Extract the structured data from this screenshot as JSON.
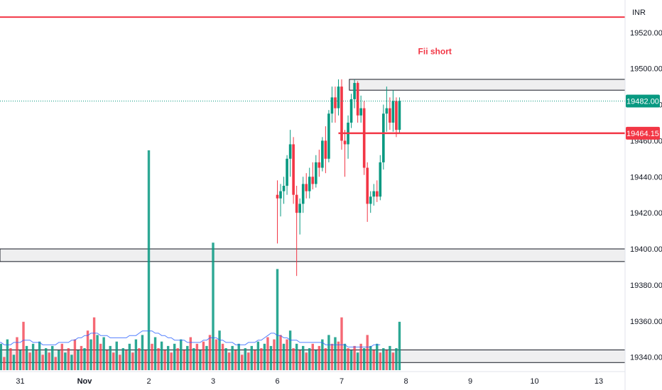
{
  "chart_data": {
    "type": "candlestick",
    "currency_label": "INR",
    "y_ticks": [
      19340,
      19360,
      19380,
      19400,
      19420,
      19440,
      19460,
      19480,
      19500,
      19520
    ],
    "y_tick_labels": [
      "19340.00",
      "19360.00",
      "19380.00",
      "19400.00",
      "19420.00",
      "19440.00",
      "19460.00",
      "19480.00",
      "19500.00",
      "19520.00"
    ],
    "ylim": [
      19332,
      19538
    ],
    "x_ticks": [
      {
        "label": "31",
        "x": -1
      },
      {
        "label": "Nov",
        "x": 0,
        "bold": true
      },
      {
        "label": "2",
        "x": 1
      },
      {
        "label": "3",
        "x": 2
      },
      {
        "label": "6",
        "x": 3
      },
      {
        "label": "7",
        "x": 4
      },
      {
        "label": "8",
        "x": 5
      },
      {
        "label": "9",
        "x": 6
      },
      {
        "label": "10",
        "x": 7
      },
      {
        "label": "13",
        "x": 8
      }
    ],
    "last_price": {
      "value": 19482.0,
      "label": "19482.00",
      "color": "#089981"
    },
    "level_line": {
      "value": 19464.15,
      "label": "19464.15",
      "color": "#f23645"
    },
    "top_line": {
      "value": 19528.5,
      "color": "#f23645"
    },
    "zones": [
      {
        "from": 19488,
        "to": 19494,
        "x_start": 4.12
      },
      {
        "from": 19393,
        "to": 19400,
        "x_start": -1.35
      },
      {
        "from": 19337,
        "to": 19344,
        "x_start": -1.35
      }
    ],
    "annotations": [
      {
        "text": "Fii short",
        "x": 5.45,
        "y": 19508,
        "color": "#f23645"
      }
    ],
    "candles": [
      {
        "x": 3.0,
        "o": 19430,
        "h": 19438,
        "l": 19403,
        "c": 19428
      },
      {
        "x": 3.05,
        "o": 19428,
        "h": 19436,
        "l": 19418,
        "c": 19432
      },
      {
        "x": 3.1,
        "o": 19432,
        "h": 19440,
        "l": 19425,
        "c": 19435
      },
      {
        "x": 3.15,
        "o": 19435,
        "h": 19452,
        "l": 19430,
        "c": 19450
      },
      {
        "x": 3.2,
        "o": 19450,
        "h": 19466,
        "l": 19440,
        "c": 19458
      },
      {
        "x": 3.25,
        "o": 19458,
        "h": 19462,
        "l": 19425,
        "c": 19430
      },
      {
        "x": 3.3,
        "o": 19430,
        "h": 19435,
        "l": 19385,
        "c": 19420
      },
      {
        "x": 3.35,
        "o": 19420,
        "h": 19428,
        "l": 19408,
        "c": 19425
      },
      {
        "x": 3.4,
        "o": 19425,
        "h": 19440,
        "l": 19420,
        "c": 19436
      },
      {
        "x": 3.45,
        "o": 19436,
        "h": 19442,
        "l": 19428,
        "c": 19432
      },
      {
        "x": 3.5,
        "o": 19432,
        "h": 19445,
        "l": 19428,
        "c": 19440
      },
      {
        "x": 3.55,
        "o": 19440,
        "h": 19448,
        "l": 19433,
        "c": 19436
      },
      {
        "x": 3.6,
        "o": 19436,
        "h": 19452,
        "l": 19434,
        "c": 19448
      },
      {
        "x": 3.65,
        "o": 19448,
        "h": 19455,
        "l": 19440,
        "c": 19445
      },
      {
        "x": 3.7,
        "o": 19445,
        "h": 19462,
        "l": 19443,
        "c": 19460
      },
      {
        "x": 3.75,
        "o": 19460,
        "h": 19468,
        "l": 19442,
        "c": 19450
      },
      {
        "x": 3.8,
        "o": 19450,
        "h": 19477,
        "l": 19448,
        "c": 19475
      },
      {
        "x": 3.85,
        "o": 19475,
        "h": 19490,
        "l": 19470,
        "c": 19484
      },
      {
        "x": 3.9,
        "o": 19484,
        "h": 19490,
        "l": 19470,
        "c": 19478
      },
      {
        "x": 3.95,
        "o": 19478,
        "h": 19494,
        "l": 19474,
        "c": 19490
      },
      {
        "x": 4.0,
        "o": 19490,
        "h": 19494,
        "l": 19455,
        "c": 19460
      },
      {
        "x": 4.05,
        "o": 19460,
        "h": 19466,
        "l": 19440,
        "c": 19458
      },
      {
        "x": 4.1,
        "o": 19458,
        "h": 19474,
        "l": 19450,
        "c": 19470
      },
      {
        "x": 4.15,
        "o": 19470,
        "h": 19486,
        "l": 19467,
        "c": 19483
      },
      {
        "x": 4.2,
        "o": 19483,
        "h": 19494,
        "l": 19478,
        "c": 19492
      },
      {
        "x": 4.25,
        "o": 19492,
        "h": 19493,
        "l": 19470,
        "c": 19474
      },
      {
        "x": 4.3,
        "o": 19474,
        "h": 19485,
        "l": 19470,
        "c": 19478
      },
      {
        "x": 4.35,
        "o": 19478,
        "h": 19482,
        "l": 19441,
        "c": 19445
      },
      {
        "x": 4.4,
        "o": 19445,
        "h": 19448,
        "l": 19415,
        "c": 19425
      },
      {
        "x": 4.45,
        "o": 19425,
        "h": 19432,
        "l": 19420,
        "c": 19429
      },
      {
        "x": 4.5,
        "o": 19429,
        "h": 19436,
        "l": 19424,
        "c": 19432
      },
      {
        "x": 4.55,
        "o": 19432,
        "h": 19438,
        "l": 19426,
        "c": 19429
      },
      {
        "x": 4.6,
        "o": 19429,
        "h": 19452,
        "l": 19427,
        "c": 19448
      },
      {
        "x": 4.65,
        "o": 19448,
        "h": 19480,
        "l": 19444,
        "c": 19475
      },
      {
        "x": 4.7,
        "o": 19475,
        "h": 19490,
        "l": 19465,
        "c": 19478
      },
      {
        "x": 4.75,
        "o": 19478,
        "h": 19484,
        "l": 19466,
        "c": 19470
      },
      {
        "x": 4.8,
        "o": 19470,
        "h": 19488,
        "l": 19465,
        "c": 19482
      },
      {
        "x": 4.85,
        "o": 19482,
        "h": 19484,
        "l": 19462,
        "c": 19466
      },
      {
        "x": 4.9,
        "o": 19466,
        "h": 19484,
        "l": 19464,
        "c": 19482
      }
    ],
    "volumes": {
      "max_value": 100,
      "bars": [
        {
          "x": -1.35,
          "v": 8,
          "up": false
        },
        {
          "x": -1.3,
          "v": 12,
          "up": true
        },
        {
          "x": -1.25,
          "v": 6,
          "up": false
        },
        {
          "x": -1.2,
          "v": 14,
          "up": true
        },
        {
          "x": -1.15,
          "v": 10,
          "up": false
        },
        {
          "x": -1.1,
          "v": 7,
          "up": true
        },
        {
          "x": -1.05,
          "v": 15,
          "up": false
        },
        {
          "x": -1.0,
          "v": 9,
          "up": true
        },
        {
          "x": -0.95,
          "v": 22,
          "up": false
        },
        {
          "x": -0.9,
          "v": 11,
          "up": true
        },
        {
          "x": -0.85,
          "v": 8,
          "up": false
        },
        {
          "x": -0.8,
          "v": 12,
          "up": true
        },
        {
          "x": -0.75,
          "v": 9,
          "up": false
        },
        {
          "x": -0.7,
          "v": 13,
          "up": true
        },
        {
          "x": -0.65,
          "v": 7,
          "up": false
        },
        {
          "x": -0.6,
          "v": 10,
          "up": true
        },
        {
          "x": -0.55,
          "v": 8,
          "up": false
        },
        {
          "x": -0.5,
          "v": 11,
          "up": true
        },
        {
          "x": -0.45,
          "v": 6,
          "up": false
        },
        {
          "x": -0.4,
          "v": 9,
          "up": true
        },
        {
          "x": -0.35,
          "v": 12,
          "up": false
        },
        {
          "x": -0.3,
          "v": 8,
          "up": true
        },
        {
          "x": -0.25,
          "v": 10,
          "up": false
        },
        {
          "x": -0.2,
          "v": 7,
          "up": true
        },
        {
          "x": -0.15,
          "v": 14,
          "up": false
        },
        {
          "x": -0.1,
          "v": 9,
          "up": true
        },
        {
          "x": -0.05,
          "v": 11,
          "up": false
        },
        {
          "x": 0.0,
          "v": 10,
          "up": true
        },
        {
          "x": 0.05,
          "v": 18,
          "up": false
        },
        {
          "x": 0.1,
          "v": 14,
          "up": true
        },
        {
          "x": 0.15,
          "v": 24,
          "up": false
        },
        {
          "x": 0.2,
          "v": 16,
          "up": true
        },
        {
          "x": 0.25,
          "v": 12,
          "up": false
        },
        {
          "x": 0.3,
          "v": 15,
          "up": true
        },
        {
          "x": 0.35,
          "v": 9,
          "up": false
        },
        {
          "x": 0.4,
          "v": 11,
          "up": true
        },
        {
          "x": 0.45,
          "v": 8,
          "up": false
        },
        {
          "x": 0.5,
          "v": 13,
          "up": true
        },
        {
          "x": 0.55,
          "v": 7,
          "up": false
        },
        {
          "x": 0.6,
          "v": 10,
          "up": true
        },
        {
          "x": 0.65,
          "v": 9,
          "up": false
        },
        {
          "x": 0.7,
          "v": 12,
          "up": true
        },
        {
          "x": 0.75,
          "v": 8,
          "up": false
        },
        {
          "x": 0.8,
          "v": 14,
          "up": true
        },
        {
          "x": 0.85,
          "v": 10,
          "up": false
        },
        {
          "x": 0.9,
          "v": 16,
          "up": true
        },
        {
          "x": 0.95,
          "v": 9,
          "up": false
        },
        {
          "x": 1.0,
          "v": 100,
          "up": true
        },
        {
          "x": 1.05,
          "v": 12,
          "up": false
        },
        {
          "x": 1.1,
          "v": 15,
          "up": true
        },
        {
          "x": 1.15,
          "v": 10,
          "up": false
        },
        {
          "x": 1.2,
          "v": 13,
          "up": true
        },
        {
          "x": 1.25,
          "v": 9,
          "up": false
        },
        {
          "x": 1.3,
          "v": 11,
          "up": true
        },
        {
          "x": 1.35,
          "v": 8,
          "up": false
        },
        {
          "x": 1.4,
          "v": 12,
          "up": true
        },
        {
          "x": 1.45,
          "v": 10,
          "up": false
        },
        {
          "x": 1.5,
          "v": 14,
          "up": true
        },
        {
          "x": 1.55,
          "v": 9,
          "up": false
        },
        {
          "x": 1.6,
          "v": 11,
          "up": true
        },
        {
          "x": 1.65,
          "v": 15,
          "up": false
        },
        {
          "x": 1.7,
          "v": 10,
          "up": true
        },
        {
          "x": 1.75,
          "v": 12,
          "up": false
        },
        {
          "x": 1.8,
          "v": 9,
          "up": true
        },
        {
          "x": 1.85,
          "v": 13,
          "up": false
        },
        {
          "x": 1.9,
          "v": 11,
          "up": true
        },
        {
          "x": 1.95,
          "v": 16,
          "up": false
        },
        {
          "x": 2.0,
          "v": 58,
          "up": true
        },
        {
          "x": 2.05,
          "v": 14,
          "up": false
        },
        {
          "x": 2.1,
          "v": 18,
          "up": true
        },
        {
          "x": 2.15,
          "v": 12,
          "up": false
        },
        {
          "x": 2.2,
          "v": 10,
          "up": true
        },
        {
          "x": 2.25,
          "v": 8,
          "up": false
        },
        {
          "x": 2.3,
          "v": 11,
          "up": true
        },
        {
          "x": 2.35,
          "v": 9,
          "up": false
        },
        {
          "x": 2.4,
          "v": 12,
          "up": true
        },
        {
          "x": 2.45,
          "v": 7,
          "up": false
        },
        {
          "x": 2.5,
          "v": 10,
          "up": true
        },
        {
          "x": 2.55,
          "v": 8,
          "up": false
        },
        {
          "x": 2.6,
          "v": 11,
          "up": true
        },
        {
          "x": 2.65,
          "v": 9,
          "up": false
        },
        {
          "x": 2.7,
          "v": 13,
          "up": true
        },
        {
          "x": 2.75,
          "v": 10,
          "up": false
        },
        {
          "x": 2.8,
          "v": 12,
          "up": true
        },
        {
          "x": 2.85,
          "v": 15,
          "up": false
        },
        {
          "x": 2.9,
          "v": 11,
          "up": true
        },
        {
          "x": 2.95,
          "v": 14,
          "up": false
        },
        {
          "x": 3.0,
          "v": 46,
          "up": true
        },
        {
          "x": 3.05,
          "v": 16,
          "up": false
        },
        {
          "x": 3.1,
          "v": 12,
          "up": true
        },
        {
          "x": 3.15,
          "v": 14,
          "up": false
        },
        {
          "x": 3.2,
          "v": 18,
          "up": true
        },
        {
          "x": 3.25,
          "v": 10,
          "up": false
        },
        {
          "x": 3.3,
          "v": 12,
          "up": true
        },
        {
          "x": 3.35,
          "v": 9,
          "up": false
        },
        {
          "x": 3.4,
          "v": 11,
          "up": true
        },
        {
          "x": 3.45,
          "v": 8,
          "up": false
        },
        {
          "x": 3.5,
          "v": 10,
          "up": true
        },
        {
          "x": 3.55,
          "v": 12,
          "up": false
        },
        {
          "x": 3.6,
          "v": 9,
          "up": true
        },
        {
          "x": 3.65,
          "v": 11,
          "up": false
        },
        {
          "x": 3.7,
          "v": 14,
          "up": true
        },
        {
          "x": 3.75,
          "v": 10,
          "up": false
        },
        {
          "x": 3.8,
          "v": 16,
          "up": true
        },
        {
          "x": 3.85,
          "v": 12,
          "up": false
        },
        {
          "x": 3.9,
          "v": 15,
          "up": true
        },
        {
          "x": 3.95,
          "v": 13,
          "up": false
        },
        {
          "x": 4.0,
          "v": 24,
          "up": false
        },
        {
          "x": 4.05,
          "v": 12,
          "up": true
        },
        {
          "x": 4.1,
          "v": 10,
          "up": false
        },
        {
          "x": 4.15,
          "v": 9,
          "up": true
        },
        {
          "x": 4.2,
          "v": 11,
          "up": false
        },
        {
          "x": 4.25,
          "v": 8,
          "up": true
        },
        {
          "x": 4.3,
          "v": 12,
          "up": false
        },
        {
          "x": 4.35,
          "v": 10,
          "up": true
        },
        {
          "x": 4.4,
          "v": 16,
          "up": false
        },
        {
          "x": 4.45,
          "v": 11,
          "up": true
        },
        {
          "x": 4.5,
          "v": 9,
          "up": false
        },
        {
          "x": 4.55,
          "v": 12,
          "up": true
        },
        {
          "x": 4.6,
          "v": 8,
          "up": false
        },
        {
          "x": 4.65,
          "v": 10,
          "up": true
        },
        {
          "x": 4.7,
          "v": 9,
          "up": false
        },
        {
          "x": 4.75,
          "v": 11,
          "up": true
        },
        {
          "x": 4.8,
          "v": 8,
          "up": false
        },
        {
          "x": 4.85,
          "v": 10,
          "up": true
        },
        {
          "x": 4.9,
          "v": 22,
          "up": true
        }
      ],
      "ma": [
        12,
        12,
        11,
        11,
        11,
        12,
        12,
        12,
        13,
        13,
        13,
        12,
        12,
        12,
        11,
        11,
        11,
        11,
        11,
        12,
        12,
        12,
        12,
        13,
        13,
        14,
        14,
        15,
        15,
        16,
        16,
        16,
        15,
        15,
        15,
        14,
        14,
        14,
        14,
        14,
        14,
        15,
        15,
        15,
        16,
        17,
        17,
        17,
        17,
        16,
        16,
        15,
        15,
        14,
        14,
        13,
        13,
        13,
        13,
        12,
        12,
        12,
        12,
        12,
        13,
        13,
        14,
        14,
        14,
        13,
        13,
        12,
        12,
        12,
        11,
        11,
        11,
        11,
        12,
        12,
        12,
        13,
        13,
        14,
        15,
        16,
        16,
        15,
        15,
        14,
        14,
        13,
        13,
        13,
        12,
        12,
        12,
        12,
        12,
        12,
        12,
        12,
        11,
        11,
        11,
        11,
        11,
        11,
        11,
        10,
        10,
        10,
        10,
        10,
        10,
        10,
        10,
        11,
        11,
        11
      ]
    }
  }
}
